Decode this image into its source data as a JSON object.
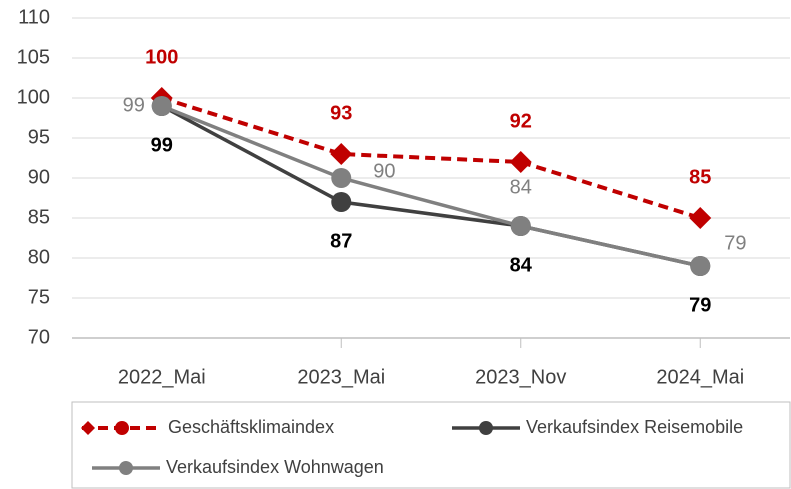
{
  "chart_data": {
    "type": "line",
    "categories": [
      "2022_Mai",
      "2023_Mai",
      "2023_Nov",
      "2024_Mai"
    ],
    "series": [
      {
        "name": "Geschäftsklimaindex",
        "color": "#c00000",
        "values": [
          100,
          93,
          92,
          85
        ]
      },
      {
        "name": "Verkaufsindex Reisemobile",
        "color": "#404040",
        "values": [
          99,
          87,
          84,
          79
        ]
      },
      {
        "name": "Verkaufsindex Wohnwagen",
        "color": "#808080",
        "values": [
          99,
          90,
          84,
          79
        ]
      }
    ],
    "ylim": [
      70,
      110
    ],
    "yticks": [
      70,
      75,
      80,
      85,
      90,
      95,
      100,
      105,
      110
    ],
    "grid": true,
    "legend": "bottom"
  }
}
